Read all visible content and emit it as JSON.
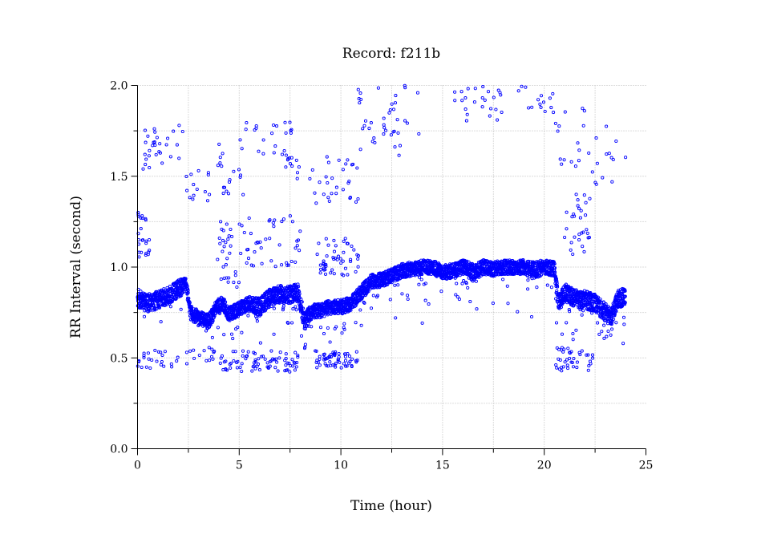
{
  "chart_data": {
    "type": "scatter",
    "title": "Record:  f211b",
    "xlabel": "Time (hour)",
    "ylabel": "RR Interval (second)",
    "xlim": [
      0,
      25
    ],
    "ylim": [
      0,
      2
    ],
    "x_ticks": [
      0,
      5,
      10,
      15,
      20,
      25
    ],
    "x_tick_labels": [
      "0",
      "5",
      "10",
      "15",
      "20",
      "25"
    ],
    "y_ticks": [
      0,
      0.5,
      1,
      1.5,
      2
    ],
    "y_tick_labels": [
      "0.0",
      "0.5",
      "1.0",
      "1.5",
      "2.0"
    ],
    "x_grid_step": 2.5,
    "y_grid_step": 0.25,
    "grid": true,
    "marker": "open-circle",
    "marker_color": "#0000ff",
    "series": [
      {
        "main_band": {
          "x": [
            0.0,
            0.5,
            1.0,
            1.5,
            2.0,
            2.4,
            2.6,
            3.0,
            3.5,
            3.9,
            4.2,
            4.5,
            5.0,
            5.5,
            6.0,
            6.5,
            7.0,
            7.5,
            7.9,
            8.2,
            8.6,
            9.0,
            9.5,
            10.0,
            10.5,
            11.0,
            11.5,
            12.0,
            12.5,
            13.0,
            13.5,
            14.0,
            14.5,
            15.0,
            15.5,
            16.0,
            16.5,
            17.0,
            17.5,
            18.0,
            18.5,
            19.0,
            19.5,
            20.0,
            20.5,
            20.7,
            21.0,
            21.5,
            22.0,
            22.5,
            23.0,
            23.3,
            23.6,
            24.0
          ],
          "y": [
            0.83,
            0.8,
            0.82,
            0.84,
            0.88,
            0.9,
            0.75,
            0.72,
            0.7,
            0.78,
            0.8,
            0.74,
            0.77,
            0.8,
            0.78,
            0.83,
            0.85,
            0.85,
            0.86,
            0.7,
            0.76,
            0.76,
            0.78,
            0.78,
            0.8,
            0.86,
            0.92,
            0.93,
            0.95,
            0.98,
            0.99,
            1.0,
            1.0,
            0.97,
            0.98,
            1.0,
            0.97,
            1.0,
            0.99,
            1.0,
            1.0,
            1.0,
            0.98,
            1.0,
            0.99,
            0.8,
            0.86,
            0.83,
            0.82,
            0.8,
            0.75,
            0.72,
            0.82,
            0.84
          ],
          "spread": [
            0.05,
            0.05,
            0.05,
            0.05,
            0.05,
            0.04,
            0.04,
            0.04,
            0.04,
            0.04,
            0.04,
            0.04,
            0.04,
            0.04,
            0.05,
            0.05,
            0.05,
            0.05,
            0.05,
            0.05,
            0.04,
            0.04,
            0.04,
            0.04,
            0.04,
            0.04,
            0.04,
            0.04,
            0.04,
            0.04,
            0.04,
            0.04,
            0.04,
            0.04,
            0.04,
            0.04,
            0.05,
            0.04,
            0.04,
            0.04,
            0.04,
            0.04,
            0.05,
            0.04,
            0.04,
            0.05,
            0.05,
            0.05,
            0.05,
            0.05,
            0.05,
            0.05,
            0.05,
            0.05
          ],
          "dip_drops": [
            0.08,
            0.12,
            0.16,
            0.22,
            0.3
          ]
        },
        "scatter_clusters": [
          {
            "x": [
              0.0,
              0.6
            ],
            "y": [
              1.05,
              1.3
            ],
            "n": 25
          },
          {
            "x": [
              0.2,
              1.0
            ],
            "y": [
              1.5,
              1.8
            ],
            "n": 18
          },
          {
            "x": [
              1.0,
              2.3
            ],
            "y": [
              1.55,
              1.78
            ],
            "n": 12
          },
          {
            "x": [
              2.4,
              3.6
            ],
            "y": [
              1.35,
              1.55
            ],
            "n": 14
          },
          {
            "x": [
              3.6,
              4.2
            ],
            "y": [
              1.55,
              1.7
            ],
            "n": 6
          },
          {
            "x": [
              4.2,
              5.2
            ],
            "y": [
              1.38,
              1.55
            ],
            "n": 12
          },
          {
            "x": [
              5.0,
              7.6
            ],
            "y": [
              1.55,
              1.8
            ],
            "n": 30
          },
          {
            "x": [
              7.5,
              8.0
            ],
            "y": [
              1.48,
              1.62
            ],
            "n": 5
          },
          {
            "x": [
              8.2,
              10.9
            ],
            "y": [
              1.35,
              1.62
            ],
            "n": 30
          },
          {
            "x": [
              3.9,
              5.0
            ],
            "y": [
              0.88,
              1.25
            ],
            "n": 30
          },
          {
            "x": [
              5.0,
              8.0
            ],
            "y": [
              1.0,
              1.3
            ],
            "n": 45
          },
          {
            "x": [
              8.8,
              10.9
            ],
            "y": [
              0.95,
              1.16
            ],
            "n": 50
          },
          {
            "x": [
              0.0,
              2.0
            ],
            "y": [
              0.44,
              0.55
            ],
            "n": 25
          },
          {
            "x": [
              2.4,
              3.8
            ],
            "y": [
              0.46,
              0.56
            ],
            "n": 12
          },
          {
            "x": [
              4.0,
              8.0
            ],
            "y": [
              0.42,
              0.54
            ],
            "n": 80
          },
          {
            "x": [
              8.7,
              10.9
            ],
            "y": [
              0.44,
              0.54
            ],
            "n": 60
          },
          {
            "x": [
              10.8,
              14.0
            ],
            "y": [
              1.6,
              2.0
            ],
            "n": 40
          },
          {
            "x": [
              15.5,
              18.0
            ],
            "y": [
              1.8,
              2.0
            ],
            "n": 25
          },
          {
            "x": [
              18.6,
              20.5
            ],
            "y": [
              1.85,
              2.0
            ],
            "n": 15
          },
          {
            "x": [
              20.4,
              22.2
            ],
            "y": [
              1.55,
              1.9
            ],
            "n": 16
          },
          {
            "x": [
              22.3,
              24.0
            ],
            "y": [
              1.45,
              1.78
            ],
            "n": 14
          },
          {
            "x": [
              20.9,
              22.3
            ],
            "y": [
              1.05,
              1.4
            ],
            "n": 30
          },
          {
            "x": [
              20.5,
              22.4
            ],
            "y": [
              0.42,
              0.56
            ],
            "n": 40
          }
        ]
      }
    ]
  }
}
